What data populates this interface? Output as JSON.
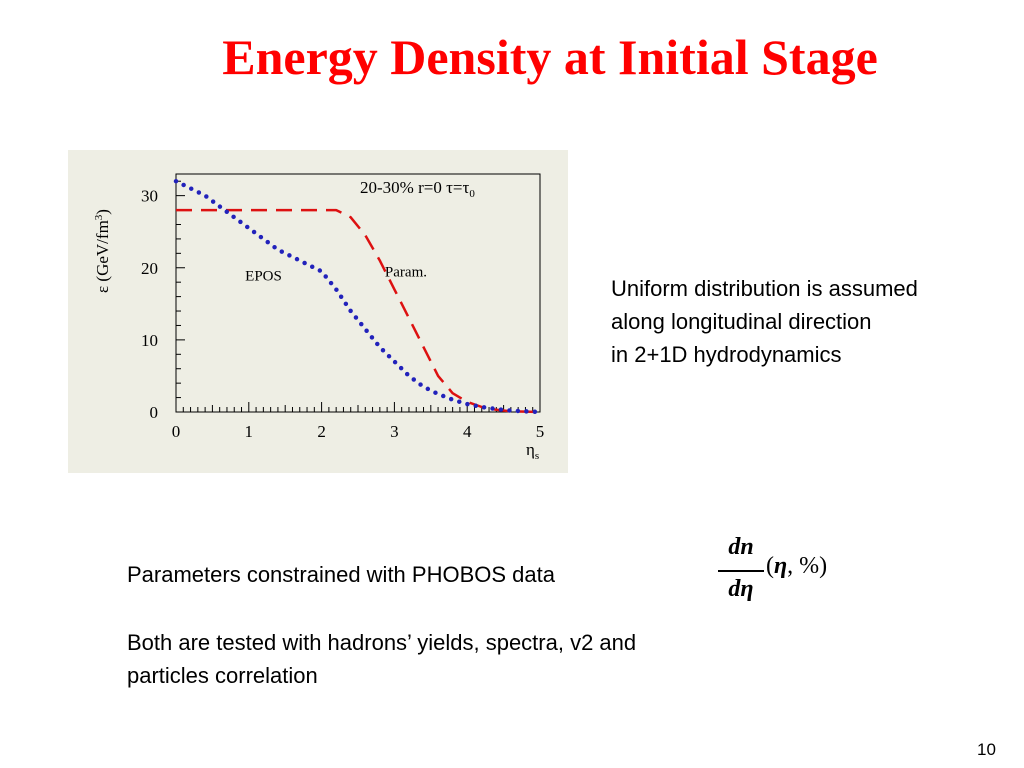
{
  "slide": {
    "title": "Energy Density at Initial Stage",
    "side_text": [
      "Uniform distribution is assumed",
      "along longitudinal direction",
      "in 2+1D hydrodynamics"
    ],
    "parameters_text": "Parameters constrained with PHOBOS data",
    "formula": {
      "numerator": "dn",
      "denominator": "dη",
      "arguments_open": "(",
      "arguments_eta": "η",
      "arguments_rest": ",  %)"
    },
    "bottom_text": [
      "Both are tested with hadrons’ yields, spectra, v2 and",
      "particles correlation"
    ],
    "page_number": "10"
  },
  "colors": {
    "title": "#ff0000",
    "panel_background": "#eeeee4",
    "param_curve": "#dd1111",
    "epos_curve": "#2222bb"
  },
  "chart_data": {
    "type": "line",
    "title": "",
    "header_annotation": "20-30%   r=0  τ=τ₀",
    "xlabel": "η",
    "xlabel_sub": "s",
    "ylabel": "ε (GeV/fm³)",
    "xlim": [
      0,
      5
    ],
    "ylim": [
      0,
      33
    ],
    "x_ticks": [
      "0",
      "1",
      "2",
      "3",
      "4",
      "5"
    ],
    "y_ticks": [
      "0",
      "10",
      "20",
      "30"
    ],
    "grid": false,
    "legend": "inline labels",
    "series": [
      {
        "name": "Param.",
        "style": "dashed",
        "color": "#dd1111",
        "x": [
          0,
          0.5,
          1.0,
          1.5,
          2.0,
          2.2,
          2.4,
          2.6,
          2.8,
          3.0,
          3.2,
          3.4,
          3.6,
          3.8,
          4.0,
          4.2,
          4.4,
          4.6,
          4.8,
          5.0
        ],
        "y": [
          28.0,
          28.0,
          28.0,
          28.0,
          28.0,
          28.0,
          27.0,
          24.5,
          21.0,
          17.0,
          13.0,
          9.0,
          5.0,
          2.6,
          1.4,
          0.7,
          0.3,
          0.1,
          0.05,
          0.0
        ]
      },
      {
        "name": "EPOS",
        "style": "dotted",
        "color": "#2222bb",
        "x": [
          0,
          0.2,
          0.4,
          0.6,
          0.8,
          1.0,
          1.2,
          1.4,
          1.6,
          1.8,
          2.0,
          2.2,
          2.4,
          2.6,
          2.8,
          3.0,
          3.2,
          3.4,
          3.6,
          3.8,
          4.0,
          4.2,
          4.4,
          4.6,
          4.8,
          5.0
        ],
        "y": [
          32.0,
          31.0,
          30.0,
          28.5,
          27.0,
          25.5,
          24.0,
          22.5,
          21.5,
          20.5,
          19.5,
          17.0,
          14.0,
          11.5,
          9.0,
          7.0,
          5.0,
          3.5,
          2.5,
          1.7,
          1.1,
          0.7,
          0.4,
          0.2,
          0.1,
          0.0
        ]
      }
    ],
    "annotations": [
      {
        "text": "EPOS",
        "x": 0.95,
        "y": 18.2
      },
      {
        "text": "Param.",
        "x": 2.87,
        "y": 18.8
      }
    ]
  }
}
